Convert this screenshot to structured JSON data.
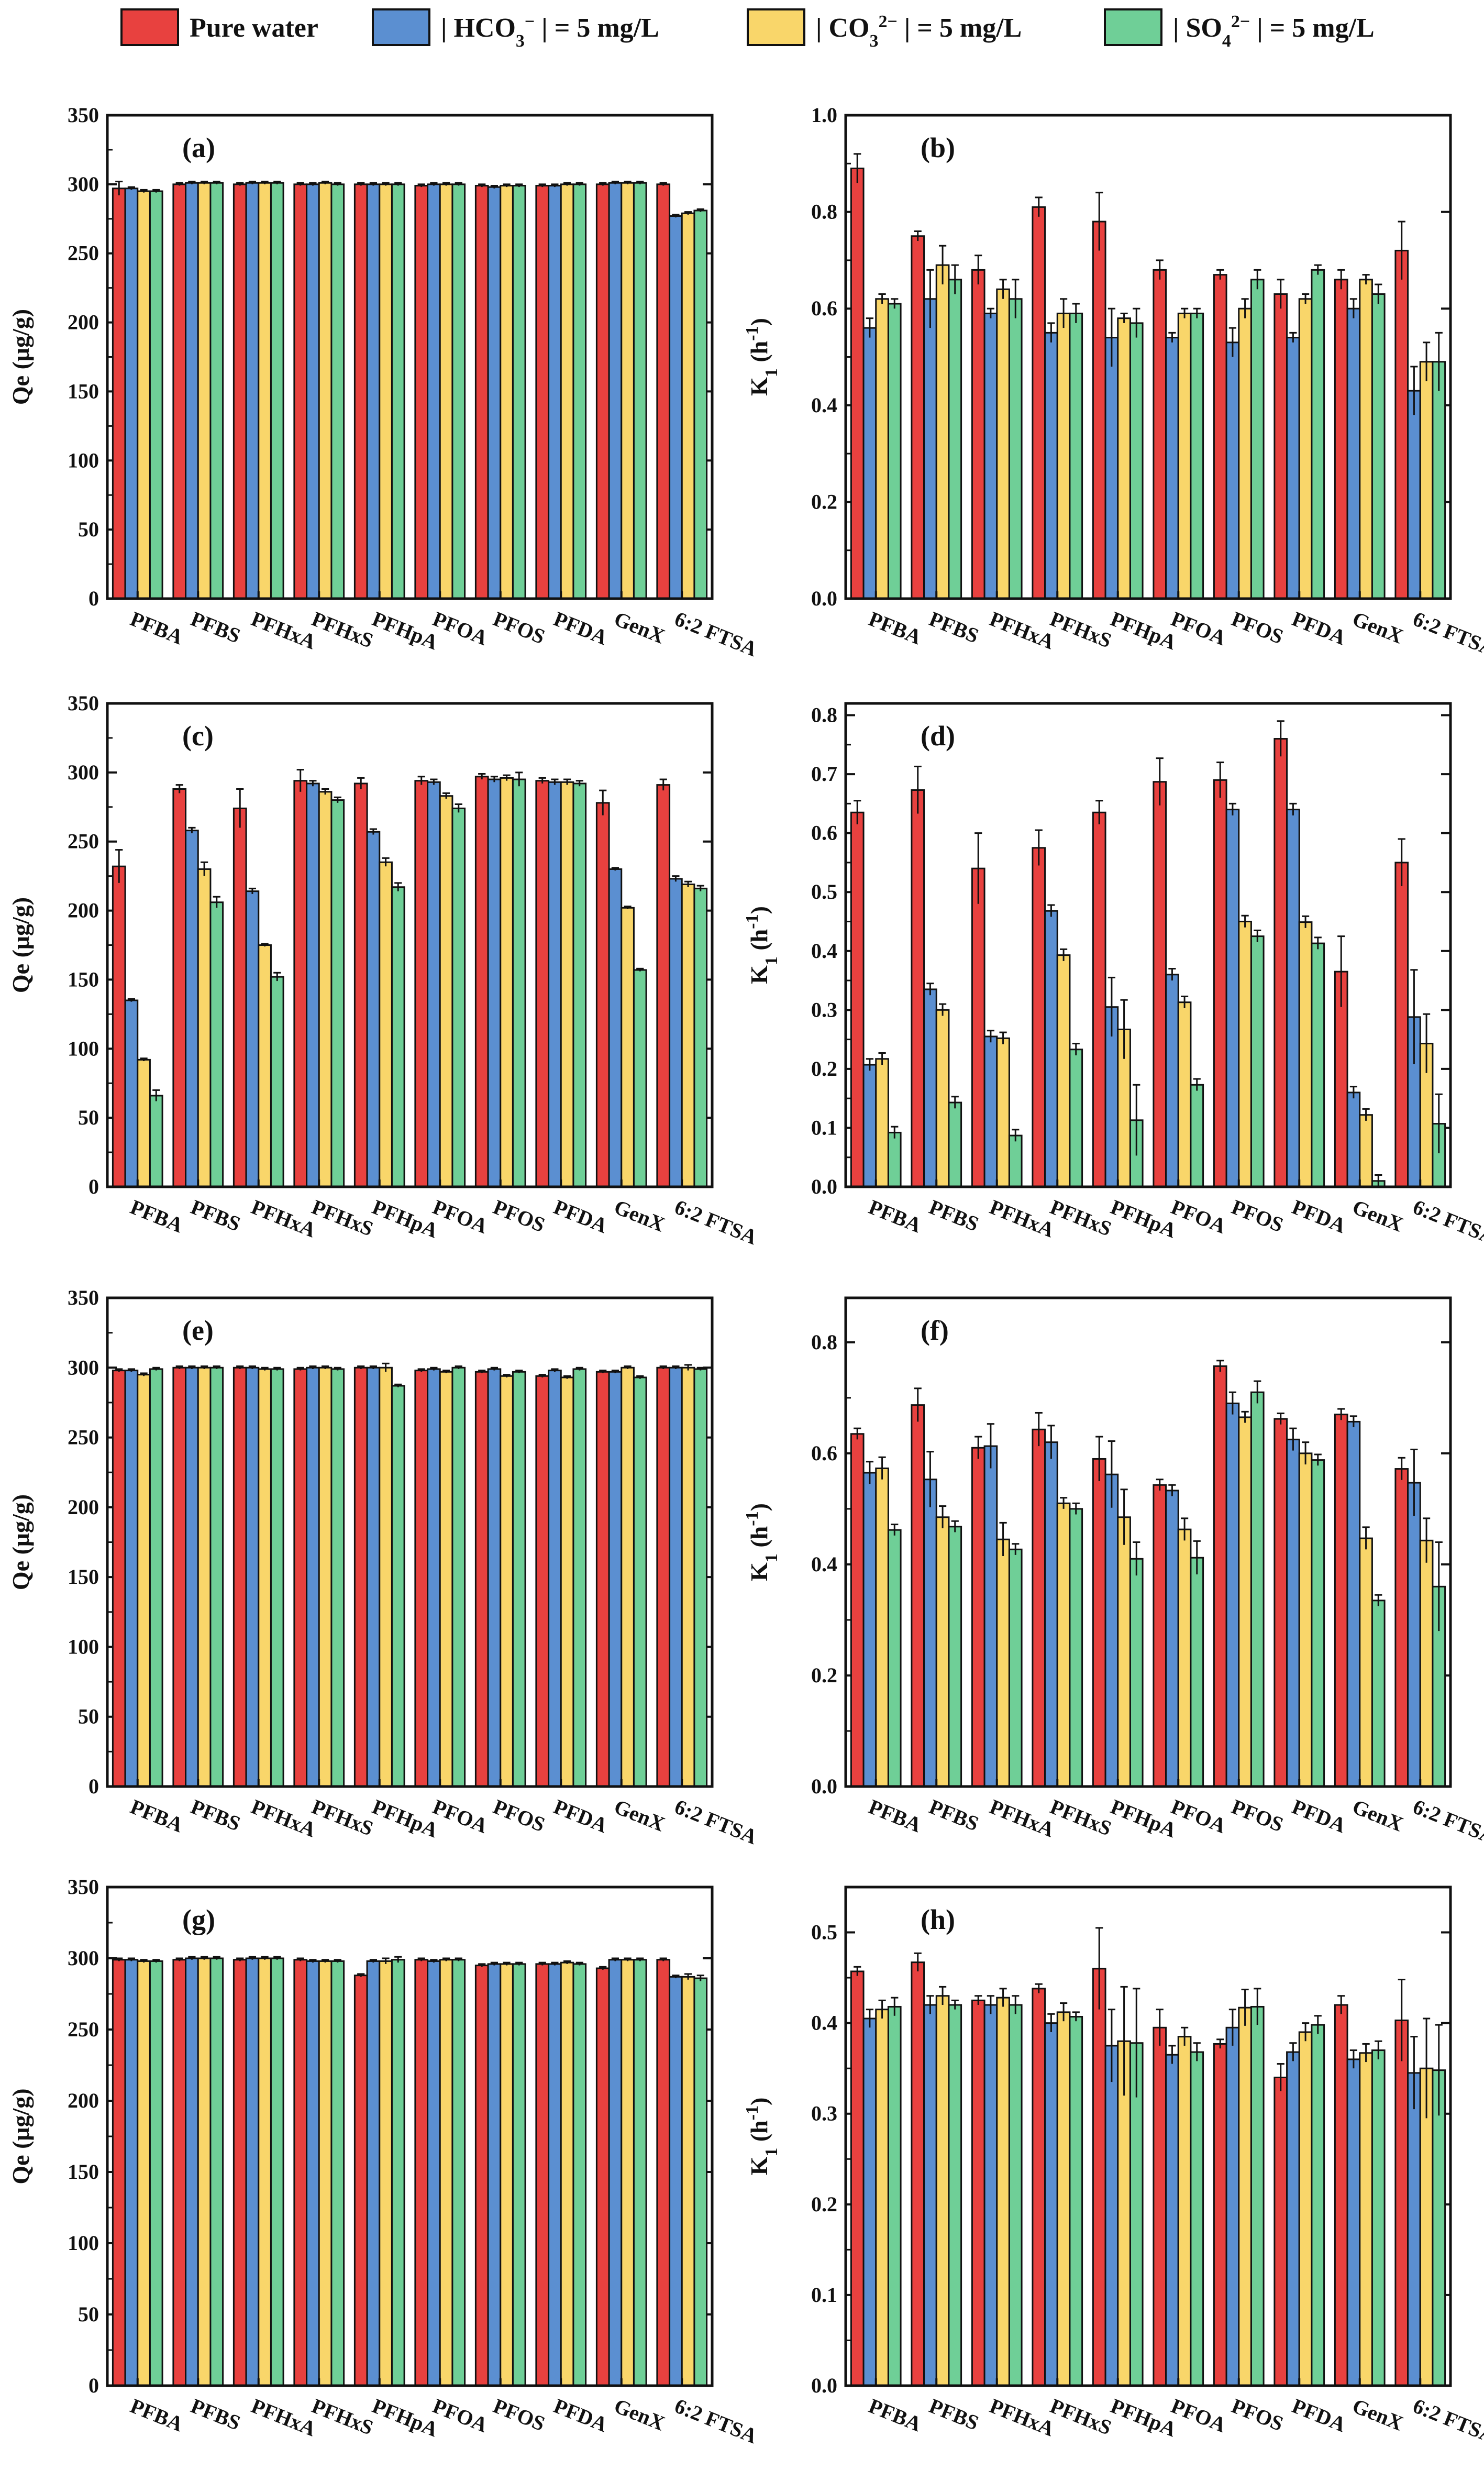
{
  "categories": [
    "PFBA",
    "PFBS",
    "PFHxA",
    "PFHxS",
    "PFHpA",
    "PFOA",
    "PFOS",
    "PFDA",
    "GenX",
    "6:2 FTSA"
  ],
  "legend": [
    {
      "name": "Pure water",
      "color": "#e8413f"
    },
    {
      "name": "| HCO3- | = 5 mg/L",
      "color": "#5b8fd1"
    },
    {
      "name": "| CO32- | = 5 mg/L",
      "color": "#f9d66a"
    },
    {
      "name": "| SO42- | = 5 mg/L",
      "color": "#6fcf97"
    }
  ],
  "legend_display": [
    {
      "parts": [
        {
          "t": "Pure water"
        }
      ]
    },
    {
      "parts": [
        {
          "t": "| HCO"
        },
        {
          "t": "3",
          "s": "sub"
        },
        {
          "t": "−",
          "s": "sup"
        },
        {
          "t": " | = 5 mg/L"
        }
      ]
    },
    {
      "parts": [
        {
          "t": "| CO"
        },
        {
          "t": "3",
          "s": "sub"
        },
        {
          "t": "2−",
          "s": "sup"
        },
        {
          "t": " | = 5 mg/L"
        }
      ]
    },
    {
      "parts": [
        {
          "t": "| SO"
        },
        {
          "t": "4",
          "s": "sub"
        },
        {
          "t": "2−",
          "s": "sup"
        },
        {
          "t": " | = 5 mg/L"
        }
      ]
    }
  ],
  "chart_data": [
    {
      "type": "bar",
      "label": "(a)",
      "ylabel": "Qe (μg/g)",
      "ylim": [
        0,
        350
      ],
      "yticks": [
        "0",
        "50",
        "100",
        "150",
        "200",
        "250",
        "300",
        "350"
      ],
      "ytick_values": [
        0,
        50,
        100,
        150,
        200,
        250,
        300,
        350
      ],
      "series": [
        {
          "name": "Pure water",
          "values": [
            297,
            300,
            300,
            300,
            300,
            299,
            299,
            299,
            300,
            300
          ],
          "errors": [
            5,
            1,
            1,
            1,
            1,
            1,
            1,
            1,
            1,
            1
          ]
        },
        {
          "name": "| HCO3- | = 5 mg/L",
          "values": [
            297,
            301,
            301,
            300,
            300,
            300,
            298,
            299,
            301,
            277
          ],
          "errors": [
            1,
            1,
            1,
            1,
            1,
            1,
            1,
            1,
            1,
            1
          ]
        },
        {
          "name": "| CO32- | = 5 mg/L",
          "values": [
            295,
            301,
            301,
            301,
            300,
            300,
            299,
            300,
            301,
            279
          ],
          "errors": [
            1,
            1,
            1,
            1,
            1,
            1,
            1,
            1,
            1,
            1
          ]
        },
        {
          "name": "| SO42- | = 5 mg/L",
          "values": [
            295,
            301,
            301,
            300,
            300,
            300,
            299,
            300,
            301,
            281
          ],
          "errors": [
            1,
            1,
            1,
            1,
            1,
            1,
            1,
            1,
            1,
            1
          ]
        }
      ]
    },
    {
      "type": "bar",
      "label": "(b)",
      "ylabel": "K1 (h-1)",
      "ylim": [
        0,
        1.0
      ],
      "yticks": [
        "0.0",
        "0.2",
        "0.4",
        "0.6",
        "0.8",
        "1.0"
      ],
      "ytick_values": [
        0,
        0.2,
        0.4,
        0.6,
        0.8,
        1.0
      ],
      "series": [
        {
          "name": "Pure water",
          "values": [
            0.89,
            0.75,
            0.68,
            0.81,
            0.78,
            0.68,
            0.67,
            0.63,
            0.66,
            0.72
          ],
          "errors": [
            0.03,
            0.01,
            0.03,
            0.02,
            0.06,
            0.02,
            0.01,
            0.03,
            0.02,
            0.06
          ]
        },
        {
          "name": "| HCO3- | = 5 mg/L",
          "values": [
            0.56,
            0.62,
            0.59,
            0.55,
            0.54,
            0.54,
            0.53,
            0.54,
            0.6,
            0.43
          ],
          "errors": [
            0.02,
            0.06,
            0.01,
            0.02,
            0.06,
            0.01,
            0.03,
            0.01,
            0.02,
            0.05
          ]
        },
        {
          "name": "| CO32- | = 5 mg/L",
          "values": [
            0.62,
            0.69,
            0.64,
            0.59,
            0.58,
            0.59,
            0.6,
            0.62,
            0.66,
            0.49
          ],
          "errors": [
            0.01,
            0.04,
            0.02,
            0.03,
            0.01,
            0.01,
            0.02,
            0.01,
            0.01,
            0.04
          ]
        },
        {
          "name": "| SO42- | = 5 mg/L",
          "values": [
            0.61,
            0.66,
            0.62,
            0.59,
            0.57,
            0.59,
            0.66,
            0.68,
            0.63,
            0.49
          ],
          "errors": [
            0.01,
            0.03,
            0.04,
            0.02,
            0.03,
            0.01,
            0.02,
            0.01,
            0.02,
            0.06
          ]
        }
      ]
    },
    {
      "type": "bar",
      "label": "(c)",
      "ylabel": "Qe (μg/g)",
      "ylim": [
        0,
        350
      ],
      "yticks": [
        "0",
        "50",
        "100",
        "150",
        "200",
        "250",
        "300",
        "350"
      ],
      "ytick_values": [
        0,
        50,
        100,
        150,
        200,
        250,
        300,
        350
      ],
      "series": [
        {
          "name": "Pure water",
          "values": [
            232,
            288,
            274,
            294,
            292,
            294,
            297,
            294,
            278,
            291
          ],
          "errors": [
            12,
            3,
            14,
            8,
            4,
            3,
            2,
            2,
            9,
            4
          ]
        },
        {
          "name": "| HCO3- | = 5 mg/L",
          "values": [
            135,
            258,
            214,
            292,
            257,
            293,
            295,
            293,
            230,
            223
          ],
          "errors": [
            1,
            2,
            2,
            2,
            2,
            2,
            2,
            2,
            1,
            2
          ]
        },
        {
          "name": "| CO32- | = 5 mg/L",
          "values": [
            92,
            230,
            175,
            286,
            235,
            283,
            296,
            293,
            202,
            219
          ],
          "errors": [
            1,
            5,
            1,
            2,
            3,
            2,
            2,
            2,
            1,
            2
          ]
        },
        {
          "name": "| SO42- | = 5 mg/L",
          "values": [
            66,
            206,
            152,
            280,
            217,
            274,
            295,
            292,
            157,
            216
          ],
          "errors": [
            4,
            4,
            3,
            2,
            3,
            3,
            5,
            2,
            1,
            2
          ]
        }
      ]
    },
    {
      "type": "bar",
      "label": "(d)",
      "ylabel": "K1 (h-1)",
      "ylim": [
        0,
        0.82
      ],
      "yticks": [
        "0.0",
        "0.1",
        "0.2",
        "0.3",
        "0.4",
        "0.5",
        "0.6",
        "0.7",
        "0.8"
      ],
      "ytick_values": [
        0,
        0.1,
        0.2,
        0.3,
        0.4,
        0.5,
        0.6,
        0.7,
        0.8
      ],
      "series": [
        {
          "name": "Pure water",
          "values": [
            0.635,
            0.673,
            0.54,
            0.575,
            0.635,
            0.687,
            0.69,
            0.76,
            0.365,
            0.55
          ],
          "errors": [
            0.02,
            0.04,
            0.06,
            0.03,
            0.02,
            0.04,
            0.03,
            0.03,
            0.06,
            0.04
          ]
        },
        {
          "name": "| HCO3- | = 5 mg/L",
          "values": [
            0.207,
            0.335,
            0.255,
            0.468,
            0.305,
            0.36,
            0.64,
            0.64,
            0.16,
            0.288
          ],
          "errors": [
            0.01,
            0.01,
            0.01,
            0.01,
            0.05,
            0.01,
            0.01,
            0.01,
            0.01,
            0.08
          ]
        },
        {
          "name": "| CO32- | = 5 mg/L",
          "values": [
            0.217,
            0.3,
            0.252,
            0.393,
            0.267,
            0.313,
            0.45,
            0.449,
            0.122,
            0.243
          ],
          "errors": [
            0.01,
            0.01,
            0.01,
            0.01,
            0.05,
            0.01,
            0.01,
            0.01,
            0.01,
            0.05
          ]
        },
        {
          "name": "| SO42- | = 5 mg/L",
          "values": [
            0.092,
            0.143,
            0.087,
            0.233,
            0.113,
            0.173,
            0.425,
            0.413,
            0.01,
            0.107
          ],
          "errors": [
            0.01,
            0.01,
            0.01,
            0.01,
            0.06,
            0.01,
            0.01,
            0.01,
            0.01,
            0.05
          ]
        }
      ]
    },
    {
      "type": "bar",
      "label": "(e)",
      "ylabel": "Qe (μg/g)",
      "ylim": [
        0,
        350
      ],
      "yticks": [
        "0",
        "50",
        "100",
        "150",
        "200",
        "250",
        "300",
        "350"
      ],
      "ytick_values": [
        0,
        50,
        100,
        150,
        200,
        250,
        300,
        350
      ],
      "series": [
        {
          "name": "Pure water",
          "values": [
            298,
            300,
            300,
            299,
            300,
            298,
            297,
            294,
            297,
            300
          ],
          "errors": [
            1,
            1,
            1,
            1,
            1,
            1,
            1,
            1,
            1,
            1
          ]
        },
        {
          "name": "| HCO3- | = 5 mg/L",
          "values": [
            298,
            300,
            300,
            300,
            300,
            299,
            299,
            298,
            297,
            300
          ],
          "errors": [
            1,
            1,
            1,
            1,
            1,
            1,
            1,
            1,
            1,
            1
          ]
        },
        {
          "name": "| CO32- | = 5 mg/L",
          "values": [
            295,
            300,
            299,
            300,
            300,
            297,
            294,
            293,
            300,
            300
          ],
          "errors": [
            1,
            1,
            1,
            1,
            3,
            1,
            1,
            1,
            1,
            2
          ]
        },
        {
          "name": "| SO42- | = 5 mg/L",
          "values": [
            299,
            300,
            299,
            299,
            287,
            300,
            297,
            299,
            293,
            299
          ],
          "errors": [
            1,
            1,
            1,
            1,
            1,
            1,
            1,
            1,
            1,
            1
          ]
        }
      ]
    },
    {
      "type": "bar",
      "label": "(f)",
      "ylabel": "K1 (h-1)",
      "ylim": [
        0,
        0.88
      ],
      "yticks": [
        "0.0",
        "0.2",
        "0.4",
        "0.6",
        "0.8"
      ],
      "ytick_values": [
        0,
        0.2,
        0.4,
        0.6,
        0.8
      ],
      "series": [
        {
          "name": "Pure water",
          "values": [
            0.635,
            0.687,
            0.61,
            0.643,
            0.59,
            0.543,
            0.757,
            0.662,
            0.67,
            0.572
          ],
          "errors": [
            0.01,
            0.03,
            0.02,
            0.03,
            0.04,
            0.01,
            0.01,
            0.01,
            0.01,
            0.02
          ]
        },
        {
          "name": "| HCO3- | = 5 mg/L",
          "values": [
            0.565,
            0.553,
            0.613,
            0.62,
            0.562,
            0.533,
            0.69,
            0.625,
            0.657,
            0.547
          ],
          "errors": [
            0.02,
            0.05,
            0.04,
            0.03,
            0.06,
            0.01,
            0.02,
            0.02,
            0.01,
            0.06
          ]
        },
        {
          "name": "| CO32- | = 5 mg/L",
          "values": [
            0.573,
            0.485,
            0.445,
            0.51,
            0.485,
            0.463,
            0.665,
            0.6,
            0.447,
            0.443
          ],
          "errors": [
            0.02,
            0.02,
            0.03,
            0.01,
            0.05,
            0.02,
            0.01,
            0.02,
            0.02,
            0.04
          ]
        },
        {
          "name": "| SO42- | = 5 mg/L",
          "values": [
            0.462,
            0.468,
            0.427,
            0.5,
            0.41,
            0.412,
            0.71,
            0.588,
            0.335,
            0.36
          ],
          "errors": [
            0.01,
            0.01,
            0.01,
            0.01,
            0.03,
            0.03,
            0.02,
            0.01,
            0.01,
            0.08
          ]
        }
      ]
    },
    {
      "type": "bar",
      "label": "(g)",
      "ylabel": "Qe (μg/g)",
      "ylim": [
        0,
        350
      ],
      "yticks": [
        "0",
        "50",
        "100",
        "150",
        "200",
        "250",
        "300",
        "350"
      ],
      "ytick_values": [
        0,
        50,
        100,
        150,
        200,
        250,
        300,
        350
      ],
      "series": [
        {
          "name": "Pure water",
          "values": [
            299,
            299,
            299,
            299,
            288,
            299,
            295,
            296,
            293,
            299
          ],
          "errors": [
            1,
            1,
            1,
            1,
            1,
            1,
            1,
            1,
            1,
            1
          ]
        },
        {
          "name": "| HCO3- | = 5 mg/L",
          "values": [
            299,
            300,
            300,
            298,
            298,
            298,
            296,
            296,
            299,
            287
          ],
          "errors": [
            1,
            1,
            1,
            1,
            1,
            1,
            1,
            1,
            1,
            1
          ]
        },
        {
          "name": "| CO32- | = 5 mg/L",
          "values": [
            298,
            300,
            300,
            298,
            298,
            299,
            296,
            297,
            299,
            287
          ],
          "errors": [
            1,
            1,
            1,
            1,
            2,
            1,
            1,
            1,
            1,
            2
          ]
        },
        {
          "name": "| SO42- | = 5 mg/L",
          "values": [
            298,
            300,
            300,
            298,
            299,
            299,
            296,
            296,
            299,
            286
          ],
          "errors": [
            1,
            1,
            1,
            1,
            2,
            1,
            1,
            1,
            1,
            2
          ]
        }
      ]
    },
    {
      "type": "bar",
      "label": "(h)",
      "ylabel": "K1 (h-1)",
      "ylim": [
        0,
        0.55
      ],
      "yticks": [
        "0.0",
        "0.1",
        "0.2",
        "0.3",
        "0.4",
        "0.5"
      ],
      "ytick_values": [
        0,
        0.1,
        0.2,
        0.3,
        0.4,
        0.5
      ],
      "series": [
        {
          "name": "Pure water",
          "values": [
            0.457,
            0.467,
            0.425,
            0.438,
            0.46,
            0.395,
            0.377,
            0.34,
            0.42,
            0.403
          ],
          "errors": [
            0.005,
            0.01,
            0.005,
            0.005,
            0.045,
            0.02,
            0.005,
            0.015,
            0.01,
            0.045
          ]
        },
        {
          "name": "| HCO3- | = 5 mg/L",
          "values": [
            0.405,
            0.42,
            0.42,
            0.4,
            0.375,
            0.365,
            0.395,
            0.368,
            0.36,
            0.345
          ],
          "errors": [
            0.01,
            0.01,
            0.01,
            0.01,
            0.04,
            0.01,
            0.02,
            0.01,
            0.01,
            0.04
          ]
        },
        {
          "name": "| CO32- | = 5 mg/L",
          "values": [
            0.415,
            0.43,
            0.428,
            0.412,
            0.38,
            0.385,
            0.417,
            0.39,
            0.367,
            0.35
          ],
          "errors": [
            0.01,
            0.01,
            0.01,
            0.01,
            0.06,
            0.01,
            0.02,
            0.01,
            0.01,
            0.055
          ]
        },
        {
          "name": "| SO42- | = 5 mg/L",
          "values": [
            0.418,
            0.42,
            0.42,
            0.407,
            0.378,
            0.368,
            0.418,
            0.398,
            0.37,
            0.348
          ],
          "errors": [
            0.01,
            0.005,
            0.01,
            0.005,
            0.06,
            0.01,
            0.02,
            0.01,
            0.01,
            0.05
          ]
        }
      ]
    }
  ]
}
